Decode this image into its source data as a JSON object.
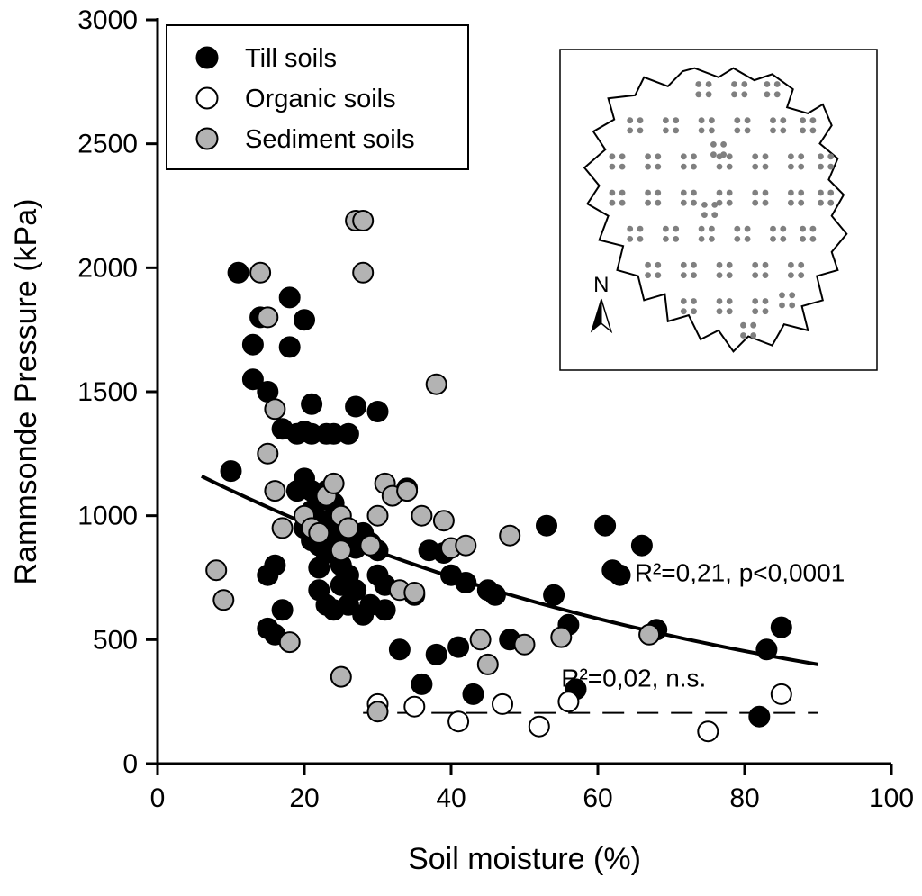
{
  "chart_data": {
    "type": "scatter",
    "title": "",
    "xlabel": "Soil moisture (%)",
    "ylabel": "Rammsonde Pressure (kPa)",
    "xlim": [
      0,
      100
    ],
    "ylim": [
      0,
      3000
    ],
    "xticks": [
      0,
      20,
      40,
      60,
      80,
      100
    ],
    "yticks": [
      0,
      500,
      1000,
      1500,
      2000,
      2500,
      3000
    ],
    "grid": false,
    "legend": {
      "position": "top-left",
      "entries": [
        {
          "label": "Till soils",
          "fill": "#000000",
          "stroke": "#000000"
        },
        {
          "label": "Organic soils",
          "fill": "#ffffff",
          "stroke": "#000000"
        },
        {
          "label": "Sediment soils",
          "fill": "#b3b3b3",
          "stroke": "#000000"
        }
      ]
    },
    "series": [
      {
        "name": "Till soils",
        "marker": "circle",
        "fill": "#000000",
        "stroke": "#000000",
        "points": [
          [
            10,
            1180
          ],
          [
            11,
            1980
          ],
          [
            13,
            1690
          ],
          [
            13,
            1550
          ],
          [
            14,
            1800
          ],
          [
            15,
            1500
          ],
          [
            15,
            760
          ],
          [
            15,
            545
          ],
          [
            16,
            800
          ],
          [
            16,
            520
          ],
          [
            17,
            620
          ],
          [
            17,
            1350
          ],
          [
            18,
            1880
          ],
          [
            18,
            1680
          ],
          [
            19,
            1330
          ],
          [
            19,
            1100
          ],
          [
            20,
            1790
          ],
          [
            20,
            1340
          ],
          [
            20,
            1150
          ],
          [
            20,
            950
          ],
          [
            21,
            1450
          ],
          [
            21,
            1330
          ],
          [
            21,
            1100
          ],
          [
            21,
            1020
          ],
          [
            21,
            900
          ],
          [
            22,
            1060
          ],
          [
            22,
            950
          ],
          [
            22,
            880
          ],
          [
            22,
            790
          ],
          [
            22,
            700
          ],
          [
            23,
            1330
          ],
          [
            23,
            1100
          ],
          [
            23,
            980
          ],
          [
            23,
            850
          ],
          [
            23,
            640
          ],
          [
            24,
            1330
          ],
          [
            24,
            1050
          ],
          [
            24,
            950
          ],
          [
            24,
            900
          ],
          [
            24,
            620
          ],
          [
            25,
            880
          ],
          [
            25,
            800
          ],
          [
            25,
            720
          ],
          [
            26,
            1330
          ],
          [
            26,
            900
          ],
          [
            26,
            760
          ],
          [
            26,
            640
          ],
          [
            27,
            1440
          ],
          [
            27,
            870
          ],
          [
            27,
            700
          ],
          [
            28,
            930
          ],
          [
            28,
            600
          ],
          [
            29,
            890
          ],
          [
            29,
            640
          ],
          [
            30,
            1420
          ],
          [
            30,
            860
          ],
          [
            30,
            760
          ],
          [
            31,
            720
          ],
          [
            31,
            620
          ],
          [
            33,
            460
          ],
          [
            34,
            1110
          ],
          [
            35,
            680
          ],
          [
            36,
            320
          ],
          [
            37,
            860
          ],
          [
            38,
            440
          ],
          [
            39,
            850
          ],
          [
            40,
            760
          ],
          [
            41,
            470
          ],
          [
            42,
            730
          ],
          [
            43,
            280
          ],
          [
            45,
            700
          ],
          [
            46,
            680
          ],
          [
            48,
            500
          ],
          [
            53,
            960
          ],
          [
            54,
            680
          ],
          [
            56,
            560
          ],
          [
            57,
            300
          ],
          [
            61,
            960
          ],
          [
            62,
            780
          ],
          [
            63,
            760
          ],
          [
            66,
            880
          ],
          [
            68,
            540
          ],
          [
            82,
            190
          ],
          [
            83,
            460
          ],
          [
            85,
            550
          ]
        ]
      },
      {
        "name": "Organic soils",
        "marker": "circle",
        "fill": "#ffffff",
        "stroke": "#000000",
        "points": [
          [
            30,
            240
          ],
          [
            35,
            230
          ],
          [
            41,
            170
          ],
          [
            47,
            240
          ],
          [
            52,
            150
          ],
          [
            56,
            250
          ],
          [
            75,
            130
          ],
          [
            85,
            280
          ]
        ]
      },
      {
        "name": "Sediment soils",
        "marker": "circle",
        "fill": "#b3b3b3",
        "stroke": "#000000",
        "points": [
          [
            8,
            780
          ],
          [
            9,
            660
          ],
          [
            14,
            1980
          ],
          [
            15,
            1800
          ],
          [
            15,
            1250
          ],
          [
            16,
            1430
          ],
          [
            16,
            1100
          ],
          [
            17,
            950
          ],
          [
            18,
            490
          ],
          [
            20,
            1000
          ],
          [
            21,
            950
          ],
          [
            22,
            930
          ],
          [
            23,
            1080
          ],
          [
            24,
            1130
          ],
          [
            25,
            1000
          ],
          [
            25,
            860
          ],
          [
            25,
            350
          ],
          [
            26,
            950
          ],
          [
            27,
            2190
          ],
          [
            28,
            2190
          ],
          [
            28,
            1980
          ],
          [
            29,
            880
          ],
          [
            30,
            1000
          ],
          [
            30,
            210
          ],
          [
            31,
            1130
          ],
          [
            32,
            1080
          ],
          [
            33,
            700
          ],
          [
            34,
            1100
          ],
          [
            35,
            690
          ],
          [
            36,
            1000
          ],
          [
            38,
            1530
          ],
          [
            39,
            980
          ],
          [
            40,
            870
          ],
          [
            42,
            880
          ],
          [
            44,
            500
          ],
          [
            45,
            400
          ],
          [
            48,
            920
          ],
          [
            50,
            480
          ],
          [
            55,
            510
          ],
          [
            67,
            520
          ]
        ]
      }
    ],
    "fits": [
      {
        "name": "till-regression",
        "style": "solid",
        "model": "exponential",
        "a": 1251,
        "k": 0.01267,
        "x_range": [
          6,
          90
        ],
        "label": "R²=0,21, p<0,0001",
        "label_pos": [
          65,
          735
        ]
      },
      {
        "name": "organic-regression",
        "style": "dashed",
        "model": "constant",
        "y": 205,
        "x_range": [
          28,
          90
        ],
        "label": "R²=0,02, n.s.",
        "label_pos": [
          55,
          310
        ]
      }
    ],
    "inset_map": {
      "north_label": "N",
      "dot_color": "#808080",
      "outline": [
        [
          0.42,
          0.03
        ],
        [
          0.5,
          0.06
        ],
        [
          0.55,
          0.03
        ],
        [
          0.62,
          0.07
        ],
        [
          0.68,
          0.05
        ],
        [
          0.75,
          0.1
        ],
        [
          0.73,
          0.16
        ],
        [
          0.8,
          0.18
        ],
        [
          0.85,
          0.15
        ],
        [
          0.88,
          0.22
        ],
        [
          0.84,
          0.28
        ],
        [
          0.9,
          0.33
        ],
        [
          0.87,
          0.4
        ],
        [
          0.92,
          0.45
        ],
        [
          0.88,
          0.52
        ],
        [
          0.93,
          0.58
        ],
        [
          0.88,
          0.64
        ],
        [
          0.9,
          0.7
        ],
        [
          0.83,
          0.72
        ],
        [
          0.85,
          0.8
        ],
        [
          0.78,
          0.82
        ],
        [
          0.8,
          0.9
        ],
        [
          0.72,
          0.88
        ],
        [
          0.68,
          0.95
        ],
        [
          0.6,
          0.92
        ],
        [
          0.55,
          0.97
        ],
        [
          0.5,
          0.9
        ],
        [
          0.44,
          0.93
        ],
        [
          0.4,
          0.85
        ],
        [
          0.33,
          0.87
        ],
        [
          0.32,
          0.78
        ],
        [
          0.25,
          0.8
        ],
        [
          0.23,
          0.72
        ],
        [
          0.16,
          0.7
        ],
        [
          0.18,
          0.62
        ],
        [
          0.1,
          0.6
        ],
        [
          0.13,
          0.52
        ],
        [
          0.06,
          0.48
        ],
        [
          0.1,
          0.42
        ],
        [
          0.05,
          0.36
        ],
        [
          0.12,
          0.3
        ],
        [
          0.08,
          0.24
        ],
        [
          0.15,
          0.2
        ],
        [
          0.13,
          0.13
        ],
        [
          0.22,
          0.12
        ],
        [
          0.25,
          0.06
        ],
        [
          0.33,
          0.09
        ],
        [
          0.38,
          0.04
        ]
      ],
      "dot_clusters": [
        [
          0.45,
          0.1
        ],
        [
          0.57,
          0.1
        ],
        [
          0.68,
          0.1
        ],
        [
          0.22,
          0.22
        ],
        [
          0.34,
          0.22
        ],
        [
          0.46,
          0.22
        ],
        [
          0.58,
          0.22
        ],
        [
          0.7,
          0.22
        ],
        [
          0.8,
          0.22
        ],
        [
          0.16,
          0.34
        ],
        [
          0.28,
          0.34
        ],
        [
          0.4,
          0.34
        ],
        [
          0.52,
          0.34
        ],
        [
          0.64,
          0.34
        ],
        [
          0.76,
          0.34
        ],
        [
          0.86,
          0.34
        ],
        [
          0.16,
          0.46
        ],
        [
          0.28,
          0.46
        ],
        [
          0.4,
          0.46
        ],
        [
          0.52,
          0.46
        ],
        [
          0.64,
          0.46
        ],
        [
          0.76,
          0.46
        ],
        [
          0.86,
          0.46
        ],
        [
          0.22,
          0.58
        ],
        [
          0.34,
          0.58
        ],
        [
          0.46,
          0.58
        ],
        [
          0.58,
          0.58
        ],
        [
          0.7,
          0.58
        ],
        [
          0.8,
          0.58
        ],
        [
          0.28,
          0.7
        ],
        [
          0.4,
          0.7
        ],
        [
          0.52,
          0.7
        ],
        [
          0.64,
          0.7
        ],
        [
          0.76,
          0.7
        ],
        [
          0.4,
          0.82
        ],
        [
          0.52,
          0.82
        ],
        [
          0.64,
          0.82
        ],
        [
          0.73,
          0.8
        ],
        [
          0.6,
          0.9
        ],
        [
          0.5,
          0.3
        ],
        [
          0.47,
          0.5
        ]
      ]
    }
  }
}
